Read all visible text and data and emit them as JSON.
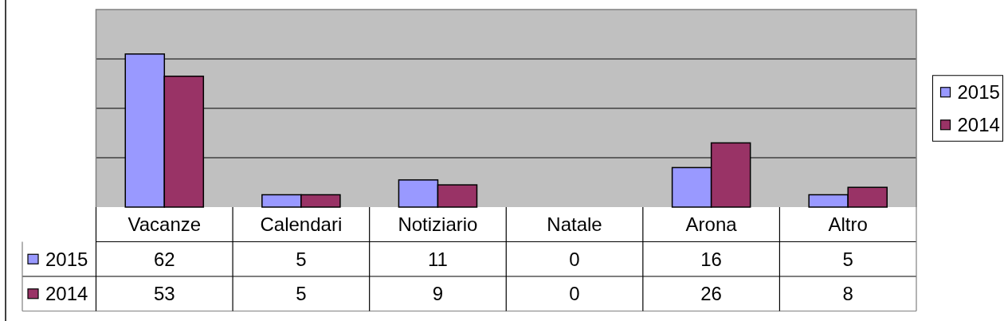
{
  "chart_data": {
    "type": "bar",
    "categories": [
      "Vacanze",
      "Calendari",
      "Notiziario",
      "Natale",
      "Arona",
      "Altro"
    ],
    "series": [
      {
        "name": "2015",
        "color": "#9999ff",
        "values": [
          62,
          5,
          11,
          0,
          16,
          5
        ]
      },
      {
        "name": "2014",
        "color": "#993366",
        "values": [
          53,
          5,
          9,
          0,
          26,
          8
        ]
      }
    ],
    "ylim": [
      0,
      80
    ],
    "yticks": [
      {
        "value": 0,
        "label": null
      },
      {
        "value": 20,
        "label": null
      },
      {
        "value": 40,
        "label": null
      },
      {
        "value": 60,
        "label": null
      },
      {
        "value": 80,
        "label": null
      }
    ],
    "grid": "y",
    "tick_labels": "x",
    "data_labels": true,
    "legend": "right"
  }
}
